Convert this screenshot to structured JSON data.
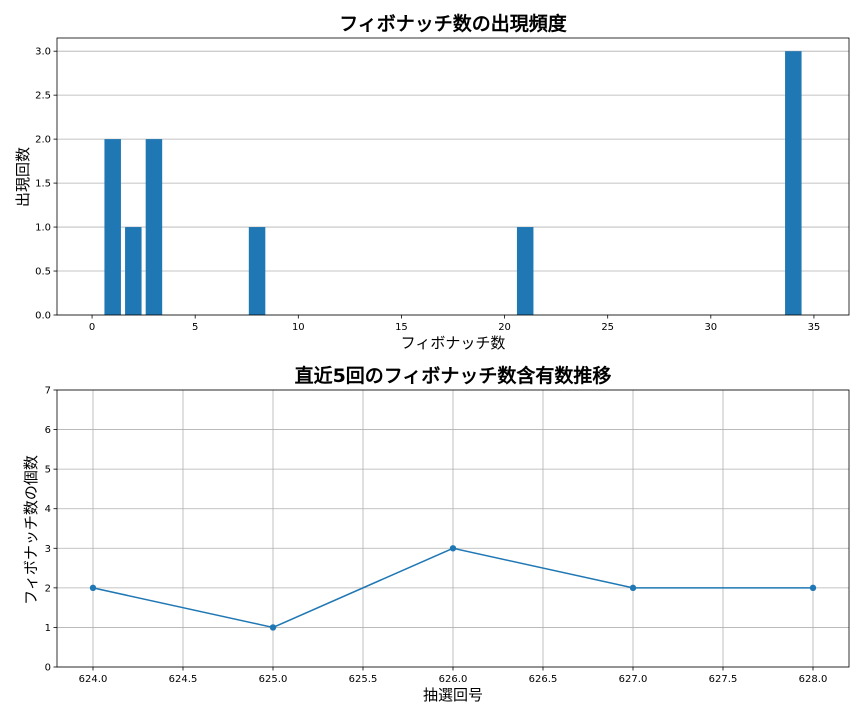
{
  "chart_data": [
    {
      "type": "bar",
      "title": "フィボナッチ数の出現頻度",
      "xlabel": "フィボナッチ数",
      "ylabel": "出現回数",
      "x": [
        1,
        2,
        3,
        8,
        21,
        34
      ],
      "values": [
        2,
        1,
        2,
        1,
        1,
        3
      ],
      "xlim": [
        -1.7,
        36.7
      ],
      "ylim": [
        0,
        3.15
      ],
      "xticks": [
        0,
        5,
        10,
        15,
        20,
        25,
        30,
        35
      ],
      "yticks": [
        0.0,
        0.5,
        1.0,
        1.5,
        2.0,
        2.5,
        3.0
      ],
      "xtick_labels": [
        "0",
        "5",
        "10",
        "15",
        "20",
        "25",
        "30",
        "35"
      ],
      "ytick_labels": [
        "0.0",
        "0.5",
        "1.0",
        "1.5",
        "2.0",
        "2.5",
        "3.0"
      ],
      "grid": "y",
      "color": "#1f77b4"
    },
    {
      "type": "line",
      "title": "直近5回のフィボナッチ数含有数推移",
      "xlabel": "抽選回号",
      "ylabel": "フィボナッチ数の個数",
      "x": [
        624,
        625,
        626,
        627,
        628
      ],
      "values": [
        2,
        1,
        3,
        2,
        2
      ],
      "xlim": [
        623.8,
        628.2
      ],
      "ylim": [
        0,
        7
      ],
      "xticks": [
        624.0,
        624.5,
        625.0,
        625.5,
        626.0,
        626.5,
        627.0,
        627.5,
        628.0
      ],
      "yticks": [
        0,
        1,
        2,
        3,
        4,
        5,
        6,
        7
      ],
      "xtick_labels": [
        "624.0",
        "624.5",
        "625.0",
        "625.5",
        "626.0",
        "626.5",
        "627.0",
        "627.5",
        "628.0"
      ],
      "ytick_labels": [
        "0",
        "1",
        "2",
        "3",
        "4",
        "5",
        "6",
        "7"
      ],
      "grid": "both",
      "marker": "o",
      "color": "#1f77b4"
    }
  ]
}
